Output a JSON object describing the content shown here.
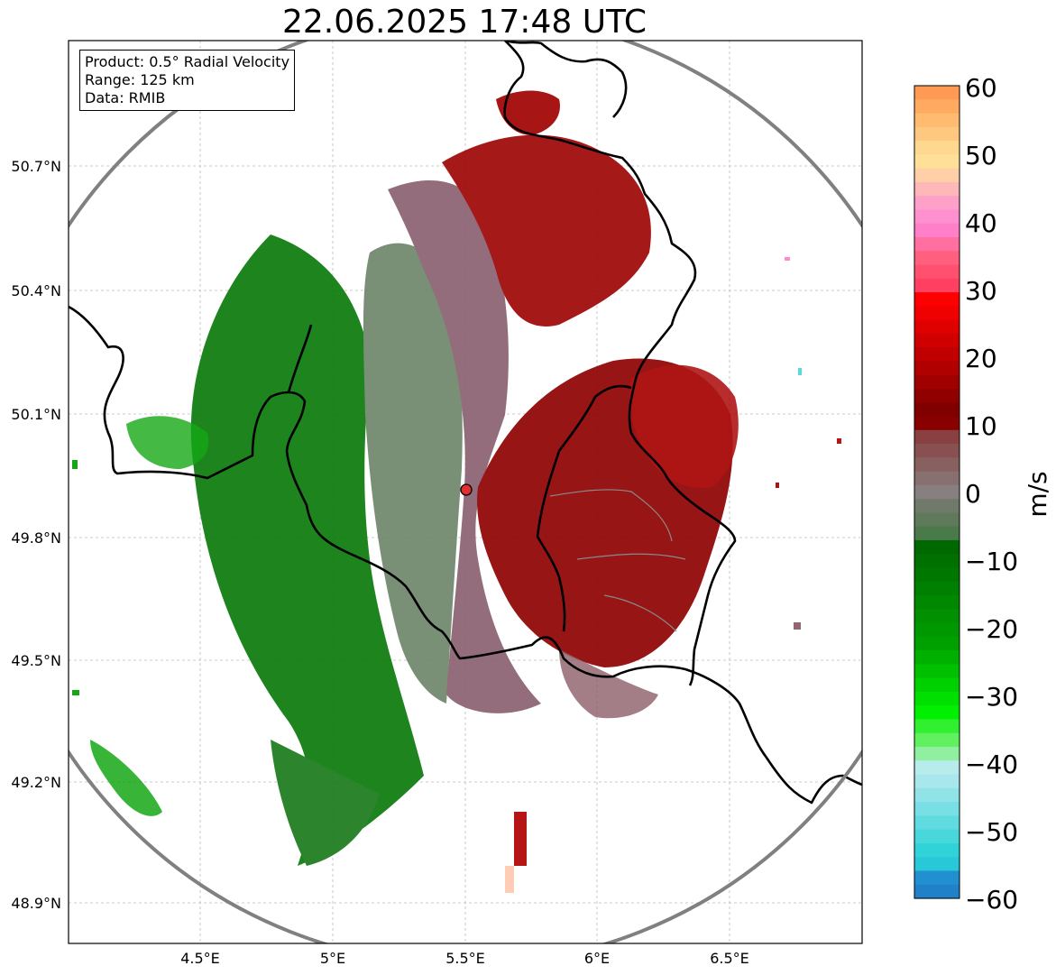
{
  "title": "22.06.2025 17:48 UTC",
  "info": {
    "product": "Product: 0.5° Radial Velocity",
    "range": "Range: 125 km",
    "source": "Data: RMIB"
  },
  "axes": {
    "lat_ticks": [
      "50.7°N",
      "50.4°N",
      "50.1°N",
      "49.8°N",
      "49.5°N",
      "49.2°N",
      "48.9°N"
    ],
    "lon_ticks": [
      "4.5°E",
      "5°E",
      "5.5°E",
      "6°E",
      "6.5°E"
    ]
  },
  "colorbar": {
    "label": "m/s",
    "ticks": [
      "60",
      "50",
      "40",
      "30",
      "20",
      "10",
      "0",
      "−10",
      "−20",
      "−30",
      "−40",
      "−50",
      "−60"
    ],
    "colors": [
      "#ff9a55",
      "#ffaa60",
      "#ffbb70",
      "#ffc880",
      "#ffd890",
      "#ffe098",
      "#ffd0a8",
      "#ffb8b8",
      "#ffa0c8",
      "#ff90d0",
      "#ff80c8",
      "#ff70a0",
      "#ff6080",
      "#ff5070",
      "#ff4060",
      "#ff0000",
      "#f00000",
      "#e00000",
      "#d00000",
      "#c00000",
      "#b00000",
      "#a00000",
      "#900000",
      "#800000",
      "#880000",
      "#884040",
      "#885050",
      "#886060",
      "#887070",
      "#888080",
      "#707a6a",
      "#5e7a5a",
      "#4a7a4a",
      "#006800",
      "#007000",
      "#007800",
      "#008000",
      "#008800",
      "#009000",
      "#009800",
      "#00a000",
      "#00b000",
      "#00c000",
      "#00d000",
      "#00e000",
      "#00f000",
      "#30f030",
      "#60f060",
      "#90f0a0",
      "#b8ecec",
      "#a8e8ec",
      "#90e4e8",
      "#78e0e4",
      "#60dce0",
      "#48d8dc",
      "#30d4d8",
      "#28c8d8",
      "#2090d0",
      "#2080c8"
    ]
  },
  "colors": {
    "outbound_red": "#a00000",
    "inbound_green": "#008000",
    "range_ring": "#808080",
    "border": "#000000",
    "radar_site": "#e03030"
  }
}
